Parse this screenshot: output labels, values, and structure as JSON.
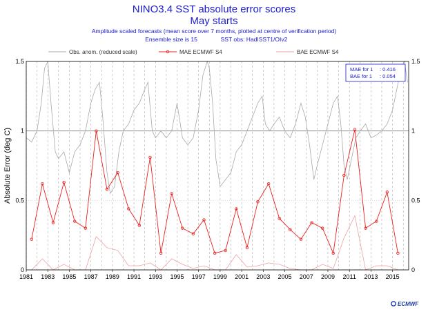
{
  "header": {
    "title": "NINO3.4 SST absolute error scores",
    "subtitle": "May starts",
    "line1": "Amplitude scaled forecasts (mean score over 7 months, plotted at centre of verification period)",
    "line2_left": "Ensemble size is 15",
    "line2_right": "SST obs: HadISST1/OIv2"
  },
  "legend": [
    {
      "label": "Obs. anom. (reduced scale)",
      "color": "#a8a8a8"
    },
    {
      "label": "MAE ECMWF S4",
      "color": "#e8201c"
    },
    {
      "label": "BAE ECMWF S4",
      "color": "#f0a0a0"
    }
  ],
  "stats_box": {
    "rows": [
      {
        "label": "MAE for 1",
        "value": ": 0.416"
      },
      {
        "label": "BAE for 1",
        "value": ": 0.054"
      }
    ]
  },
  "logo": {
    "text": "ECMWF"
  },
  "chart_data": {
    "type": "line",
    "ylabel": "Absolute Error (deg C)",
    "xlim": [
      1981,
      2016.5
    ],
    "ylim": [
      0,
      1.5
    ],
    "grid": true,
    "x_ticks": [
      "1981",
      "1983",
      "1985",
      "1987",
      "1989",
      "1991",
      "1993",
      "1995",
      "1997",
      "1999",
      "2001",
      "2003",
      "2005",
      "2007",
      "2009",
      "2011",
      "2013",
      "2015"
    ],
    "y_ticks": [
      "0",
      "0.5",
      "1",
      "1.5"
    ],
    "reference_line": 1,
    "series": [
      {
        "name": "MAE ECMWF S4",
        "color": "#e8201c",
        "marker": "circle",
        "x": [
          1981.5,
          1982.5,
          1983.5,
          1984.5,
          1985.5,
          1986.5,
          1987.5,
          1988.5,
          1989.5,
          1990.5,
          1991.5,
          1992.5,
          1993.5,
          1994.5,
          1995.5,
          1996.5,
          1997.5,
          1998.5,
          1999.5,
          2000.5,
          2001.5,
          2002.5,
          2003.5,
          2004.5,
          2005.5,
          2006.5,
          2007.5,
          2008.5,
          2009.5,
          2010.5,
          2011.5,
          2012.5,
          2013.5,
          2014.5,
          2015.5
        ],
        "y": [
          0.22,
          0.62,
          0.34,
          0.63,
          0.35,
          0.3,
          1.0,
          0.58,
          0.7,
          0.44,
          0.32,
          0.81,
          0.12,
          0.55,
          0.3,
          0.26,
          0.36,
          0.12,
          0.14,
          0.44,
          0.16,
          0.49,
          0.62,
          0.37,
          0.29,
          0.22,
          0.34,
          0.3,
          0.12,
          0.68,
          1.01,
          0.3,
          0.35,
          0.56,
          0.12
        ]
      },
      {
        "name": "BAE ECMWF S4",
        "color": "#f0a0a0",
        "marker": "none",
        "x": [
          1981.5,
          1982.5,
          1983.5,
          1984.5,
          1985.5,
          1986.5,
          1987.5,
          1988.5,
          1989.5,
          1990.5,
          1991.5,
          1992.5,
          1993.5,
          1994.5,
          1995.5,
          1996.5,
          1997.5,
          1998.5,
          1999.5,
          2000.5,
          2001.5,
          2002.5,
          2003.5,
          2004.5,
          2005.5,
          2006.5,
          2007.5,
          2008.5,
          2009.5,
          2010.5,
          2011.5,
          2012.5,
          2013.5,
          2014.5,
          2015.5
        ],
        "y": [
          0.0,
          0.08,
          0.0,
          0.04,
          0.0,
          0.0,
          0.24,
          0.16,
          0.14,
          0.03,
          0.03,
          0.05,
          0.0,
          0.08,
          0.04,
          0.01,
          0.03,
          0.0,
          0.0,
          0.11,
          0.02,
          0.03,
          0.05,
          0.04,
          0.01,
          0.0,
          0.0,
          0.04,
          0.01,
          0.23,
          0.39,
          0.0,
          0.03,
          0.03,
          0.0
        ]
      },
      {
        "name": "Obs. anom. (reduced scale)",
        "color": "#a8a8a8",
        "marker": "none",
        "x": [
          1981.0,
          1981.5,
          1982.0,
          1982.4,
          1982.7,
          1983.0,
          1983.3,
          1983.7,
          1984.0,
          1984.5,
          1985.0,
          1985.5,
          1986.0,
          1986.5,
          1987.0,
          1987.4,
          1987.8,
          1988.1,
          1988.5,
          1988.8,
          1989.2,
          1989.6,
          1990.0,
          1990.5,
          1991.0,
          1991.5,
          1992.0,
          1992.3,
          1992.7,
          1993.0,
          1993.5,
          1994.0,
          1994.5,
          1995.0,
          1995.5,
          1996.0,
          1996.5,
          1997.0,
          1997.4,
          1997.8,
          1998.0,
          1998.3,
          1998.6,
          1999.0,
          1999.5,
          2000.0,
          2000.5,
          2001.0,
          2001.5,
          2002.0,
          2002.5,
          2002.9,
          2003.2,
          2003.6,
          2004.0,
          2004.5,
          2005.0,
          2005.5,
          2006.0,
          2006.5,
          2006.9,
          2007.3,
          2007.7,
          2008.0,
          2008.5,
          2009.0,
          2009.5,
          2009.9,
          2010.2,
          2010.5,
          2010.8,
          2011.2,
          2011.6,
          2012.0,
          2012.5,
          2013.0,
          2013.5,
          2014.0,
          2014.5,
          2015.0,
          2015.4,
          2015.8,
          2016.1,
          2016.4
        ],
        "y": [
          0.95,
          0.92,
          1.0,
          1.2,
          1.45,
          1.5,
          1.2,
          0.85,
          0.8,
          0.85,
          0.7,
          0.85,
          0.9,
          1.0,
          1.2,
          1.3,
          1.35,
          1.1,
          0.7,
          0.55,
          0.6,
          0.85,
          1.0,
          1.05,
          1.15,
          1.2,
          1.3,
          1.35,
          1.0,
          0.95,
          1.0,
          0.95,
          1.0,
          1.2,
          0.95,
          0.9,
          0.95,
          1.15,
          1.4,
          1.5,
          1.45,
          1.2,
          0.8,
          0.6,
          0.65,
          0.7,
          0.85,
          0.9,
          1.0,
          1.1,
          1.2,
          1.25,
          1.05,
          1.0,
          1.05,
          1.1,
          1.0,
          0.95,
          1.05,
          1.2,
          1.1,
          0.9,
          0.65,
          0.75,
          0.9,
          1.05,
          1.2,
          1.25,
          1.05,
          0.75,
          0.65,
          0.8,
          0.95,
          1.0,
          1.05,
          0.95,
          0.97,
          1.0,
          1.05,
          1.15,
          1.3,
          1.45,
          1.5,
          1.35
        ]
      }
    ]
  }
}
